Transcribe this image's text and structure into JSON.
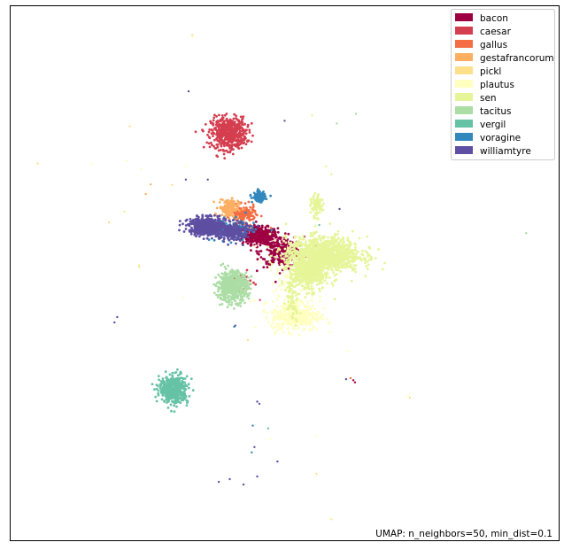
{
  "chart_data": {
    "type": "scatter",
    "title": "",
    "xlabel": "",
    "ylabel": "",
    "axes_visible": false,
    "grid": false,
    "legend_placement": "top-right",
    "annotation": "UMAP: n_neighbors=50, min_dist=0.1",
    "xlim": [
      0,
      100
    ],
    "ylim": [
      0,
      100
    ],
    "series": [
      {
        "name": "bacon",
        "color": "#9e0142",
        "clusters": [
          {
            "cx": 45.5,
            "cy": 57.0,
            "sx": 1.6,
            "sy": 0.8,
            "n": 420
          },
          {
            "cx": 49.5,
            "cy": 54.0,
            "sx": 2.0,
            "sy": 1.4,
            "n": 260
          }
        ],
        "points": [
          [
            62.5,
            30.0
          ],
          [
            62.8,
            29.6
          ]
        ]
      },
      {
        "name": "caesar",
        "color": "#d53e4f",
        "clusters": [
          {
            "cx": 39.8,
            "cy": 76.2,
            "sx": 1.6,
            "sy": 1.5,
            "n": 520
          },
          {
            "cx": 42.0,
            "cy": 48.5,
            "sx": 1.0,
            "sy": 0.8,
            "n": 40
          }
        ],
        "points": [
          [
            45.5,
            45.0
          ],
          [
            42.5,
            47.0
          ]
        ]
      },
      {
        "name": "gallus",
        "color": "#f46d43",
        "clusters": [
          {
            "cx": 42.5,
            "cy": 61.0,
            "sx": 1.1,
            "sy": 0.8,
            "n": 150
          }
        ],
        "points": [
          [
            62.0,
            30.4
          ],
          [
            47.5,
            58.5
          ]
        ]
      },
      {
        "name": "gestafrancorum",
        "color": "#fdae61",
        "clusters": [
          {
            "cx": 39.8,
            "cy": 62.2,
            "sx": 0.9,
            "sy": 0.9,
            "n": 130
          }
        ],
        "points": [
          [
            24.7,
            64.8
          ],
          [
            25.6,
            66.6
          ]
        ]
      },
      {
        "name": "pickl",
        "color": "#fee08b",
        "clusters": [],
        "points": [
          [
            33.2,
            94.5
          ],
          [
            21.8,
            77.5
          ],
          [
            5.0,
            70.5
          ],
          [
            18.0,
            59.5
          ],
          [
            23.5,
            51.2
          ],
          [
            58.5,
            4.0
          ],
          [
            43.3,
            37.5
          ],
          [
            55.8,
            12.5
          ],
          [
            72.8,
            26.7
          ],
          [
            29.5,
            66.5
          ]
        ]
      },
      {
        "name": "plautus",
        "color": "#ffffbf",
        "clusters": [
          {
            "cx": 52.0,
            "cy": 42.0,
            "sx": 2.2,
            "sy": 1.4,
            "n": 360
          },
          {
            "cx": 51.0,
            "cy": 49.5,
            "sx": 2.6,
            "sy": 3.6,
            "n": 120
          }
        ],
        "points": [
          [
            33.2,
            94.2
          ],
          [
            21.2,
            71.0
          ],
          [
            14.8,
            70.5
          ],
          [
            23.8,
            69.5
          ],
          [
            32.0,
            70.0
          ],
          [
            61.5,
            35.5
          ],
          [
            72.5,
            27.0
          ],
          [
            47.5,
            19.0
          ],
          [
            55.7,
            19.5
          ],
          [
            58.5,
            4.2
          ],
          [
            31.5,
            45.5
          ]
        ]
      },
      {
        "name": "sen",
        "color": "#e6f598",
        "clusters": [
          {
            "cx": 57.0,
            "cy": 53.5,
            "sx": 3.4,
            "sy": 1.6,
            "n": 1100
          },
          {
            "cx": 54.5,
            "cy": 50.0,
            "sx": 1.8,
            "sy": 1.6,
            "n": 420
          },
          {
            "cx": 55.8,
            "cy": 62.5,
            "sx": 0.5,
            "sy": 1.0,
            "n": 90
          },
          {
            "cx": 51.5,
            "cy": 46.0,
            "sx": 0.6,
            "sy": 2.5,
            "n": 80
          }
        ],
        "points": [
          [
            55.0,
            79.5
          ],
          [
            57.5,
            70.0
          ],
          [
            58.5,
            68.5
          ],
          [
            20.8,
            61.5
          ],
          [
            23.5,
            51.5
          ]
        ]
      },
      {
        "name": "tacitus",
        "color": "#abdda4",
        "clusters": [
          {
            "cx": 40.5,
            "cy": 47.5,
            "sx": 1.4,
            "sy": 1.4,
            "n": 560
          }
        ],
        "points": [
          [
            94.0,
            57.5
          ],
          [
            63.0,
            79.8
          ],
          [
            59.5,
            78.0
          ]
        ]
      },
      {
        "name": "vergil",
        "color": "#66c2a5",
        "clusters": [
          {
            "cx": 29.8,
            "cy": 28.2,
            "sx": 1.3,
            "sy": 1.2,
            "n": 420
          },
          {
            "cx": 30.5,
            "cy": 29.5,
            "sx": 0.4,
            "sy": 1.0,
            "n": 40
          }
        ],
        "points": [
          [
            56.3,
            59.0
          ],
          [
            47.0,
            21.0
          ]
        ]
      },
      {
        "name": "voragine",
        "color": "#3288bd",
        "clusters": [
          {
            "cx": 45.3,
            "cy": 64.3,
            "sx": 0.6,
            "sy": 0.5,
            "n": 90
          },
          {
            "cx": 40.5,
            "cy": 58.0,
            "sx": 2.0,
            "sy": 1.0,
            "n": 140
          }
        ],
        "points": [
          [
            44.0,
            16.5
          ],
          [
            44.2,
            21.5
          ],
          [
            40.8,
            40.0
          ]
        ]
      },
      {
        "name": "williamtyre",
        "color": "#5e4fa2",
        "clusters": [
          {
            "cx": 35.8,
            "cy": 58.8,
            "sx": 1.6,
            "sy": 0.8,
            "n": 520
          },
          {
            "cx": 40.2,
            "cy": 57.8,
            "sx": 1.5,
            "sy": 0.9,
            "n": 260
          }
        ],
        "points": [
          [
            32.5,
            84.0
          ],
          [
            19.0,
            40.8
          ],
          [
            19.5,
            41.8
          ],
          [
            41.0,
            40.2
          ],
          [
            45.0,
            26.0
          ],
          [
            45.4,
            25.6
          ],
          [
            44.5,
            17.5
          ],
          [
            48.7,
            14.8
          ],
          [
            45.0,
            12.0
          ],
          [
            38.0,
            11.0
          ],
          [
            40.0,
            11.5
          ],
          [
            42.5,
            10.5
          ],
          [
            36.0,
            67.5
          ],
          [
            32.0,
            67.5
          ],
          [
            50.0,
            78.5
          ],
          [
            60.0,
            62.0
          ],
          [
            61.2,
            30.2
          ]
        ]
      }
    ]
  }
}
